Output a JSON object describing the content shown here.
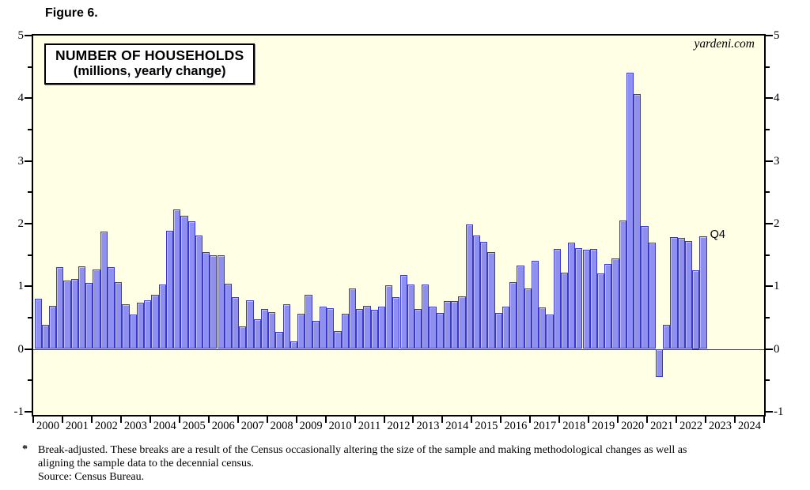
{
  "figure_label": "Figure 6.",
  "watermark": "yardeni.com",
  "title_box": {
    "line1": "NUMBER OF HOUSEHOLDS",
    "line2": "(millions, yearly change)"
  },
  "footnote": {
    "marker": "*",
    "line1": "Break-adjusted. These breaks are a result of the Census occasionally altering the size of the sample and making methodological changes as well as",
    "line2": "aligning the sample data to the decennial census.",
    "line3": "Source: Census Bureau."
  },
  "colors": {
    "bar_fill": "#8F8FF0",
    "bar_border": "#3838CC",
    "plot_bg": "#FFFFE6",
    "page_bg": "#FFFFFF",
    "axis": "#000000",
    "zero_line": "#333333"
  },
  "chart_data": {
    "type": "bar",
    "title": "NUMBER OF HOUSEHOLDS (millions, yearly change)",
    "ylabel": "millions, yearly change",
    "frequency": "quarterly",
    "ylim": [
      -1.05,
      5.0
    ],
    "y_ticks": [
      -1,
      0,
      1,
      2,
      3,
      4,
      5
    ],
    "y_minor_tick_step": 0.5,
    "grid": false,
    "x_axis_years": [
      "2000",
      "2001",
      "2002",
      "2003",
      "2004",
      "2005",
      "2006",
      "2007",
      "2008",
      "2009",
      "2010",
      "2011",
      "2012",
      "2013",
      "2014",
      "2015",
      "2016",
      "2017",
      "2018",
      "2019",
      "2020",
      "2021",
      "2022",
      "2023",
      "2024"
    ],
    "last_point_label": "Q4",
    "series": [
      {
        "name": "Number of households, yearly change (millions)",
        "start": "2000Q1",
        "end": "2022Q4",
        "values": [
          0.8,
          0.38,
          0.69,
          1.3,
          1.09,
          1.11,
          1.32,
          1.05,
          1.27,
          1.87,
          1.3,
          1.06,
          0.71,
          0.55,
          0.74,
          0.78,
          0.86,
          1.03,
          1.88,
          2.23,
          2.12,
          2.04,
          1.81,
          1.54,
          1.49,
          1.5,
          1.04,
          0.82,
          0.36,
          0.78,
          0.47,
          0.64,
          0.59,
          0.27,
          0.71,
          0.12,
          0.56,
          0.86,
          0.45,
          0.68,
          0.65,
          0.28,
          0.56,
          0.97,
          0.64,
          0.69,
          0.62,
          0.67,
          1.02,
          0.83,
          1.18,
          1.03,
          0.64,
          1.03,
          0.67,
          0.58,
          0.76,
          0.76,
          0.84,
          1.98,
          1.81,
          1.71,
          1.55,
          0.58,
          0.68,
          1.07,
          1.33,
          0.97,
          1.41,
          0.66,
          0.55,
          1.6,
          1.22,
          1.69,
          1.61,
          1.58,
          1.6,
          1.2,
          1.35,
          1.45,
          2.05,
          4.41,
          4.07,
          1.96,
          1.7,
          -0.45,
          0.38,
          1.79,
          1.77,
          1.72,
          1.25,
          1.8
        ]
      }
    ]
  }
}
